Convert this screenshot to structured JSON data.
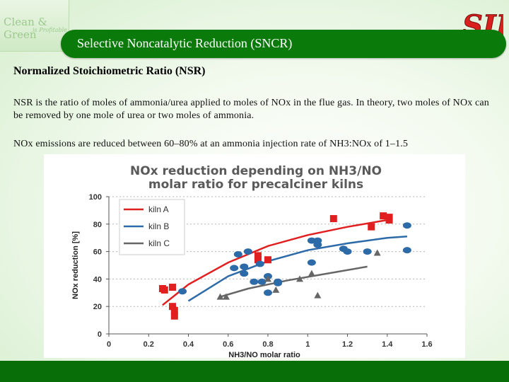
{
  "slide": {
    "logo_left_line1": "Clean & Green",
    "logo_left_line2": "is Profitable",
    "logo_right_text": "SII",
    "title": "Selective Noncatalytic Reduction (SNCR)",
    "heading": "Normalized Stoichiometric Ratio (NSR)",
    "paragraph1": "NSR is the ratio of moles of ammonia/urea applied to moles of NOx in the flue gas. In theory, two moles of NOx can be removed by one mole of urea or two moles of ammonia.",
    "paragraph2": "NOx emissions are reduced between 60–80% at an ammonia injection rate of NH3:NOx of 1–1.5",
    "colors": {
      "title_bar": "#0a7a0a",
      "footer_bar": "#086e08"
    }
  },
  "chart_data": {
    "type": "scatter",
    "title_line1": "NOx reduction depending on NH3/NO",
    "title_line2": "molar ratio for precalciner kilns",
    "xlabel": "NH3/NO molar ratio",
    "ylabel": "NOx reduction [%]",
    "xlim": [
      0,
      1.6
    ],
    "ylim": [
      0,
      100
    ],
    "x_ticks": [
      "0",
      "0.2",
      "0.4",
      "0.6",
      "0.8",
      "1",
      "1.2",
      "1.4",
      "1.6"
    ],
    "y_ticks": [
      "0",
      "20",
      "40",
      "60",
      "80",
      "100"
    ],
    "legend_position": "top-left",
    "series": [
      {
        "name": "kiln A",
        "color": "#e02020",
        "marker": "square",
        "points": [
          [
            0.27,
            33
          ],
          [
            0.28,
            32
          ],
          [
            0.32,
            34
          ],
          [
            0.32,
            20
          ],
          [
            0.33,
            17
          ],
          [
            0.33,
            13
          ],
          [
            0.75,
            57
          ],
          [
            0.75,
            54
          ],
          [
            0.8,
            54
          ],
          [
            1.13,
            84
          ],
          [
            1.32,
            78
          ],
          [
            1.38,
            86
          ],
          [
            1.41,
            85
          ],
          [
            1.41,
            83
          ]
        ],
        "trend": [
          [
            0.27,
            21
          ],
          [
            0.4,
            36
          ],
          [
            0.6,
            52
          ],
          [
            0.8,
            64
          ],
          [
            1.0,
            72
          ],
          [
            1.2,
            78
          ],
          [
            1.4,
            83
          ]
        ]
      },
      {
        "name": "kiln B",
        "color": "#2c6aa8",
        "marker": "circle",
        "points": [
          [
            0.37,
            31
          ],
          [
            0.63,
            48
          ],
          [
            0.65,
            58
          ],
          [
            0.68,
            44
          ],
          [
            0.68,
            49
          ],
          [
            0.7,
            60
          ],
          [
            0.73,
            38
          ],
          [
            0.76,
            51
          ],
          [
            0.77,
            38
          ],
          [
            0.8,
            30
          ],
          [
            0.8,
            42
          ],
          [
            0.85,
            37
          ],
          [
            0.85,
            38
          ],
          [
            1.02,
            52
          ],
          [
            1.02,
            68
          ],
          [
            1.05,
            68
          ],
          [
            1.05,
            65
          ],
          [
            1.18,
            62
          ],
          [
            1.2,
            60
          ],
          [
            1.3,
            60
          ],
          [
            1.5,
            79
          ],
          [
            1.5,
            61
          ]
        ],
        "trend": [
          [
            0.4,
            24
          ],
          [
            0.6,
            42
          ],
          [
            0.8,
            53
          ],
          [
            1.0,
            61
          ],
          [
            1.2,
            66
          ],
          [
            1.4,
            70
          ],
          [
            1.5,
            71
          ]
        ]
      },
      {
        "name": "kiln C",
        "color": "#666666",
        "marker": "triangle",
        "points": [
          [
            0.56,
            27
          ],
          [
            0.59,
            27
          ],
          [
            0.8,
            40
          ],
          [
            0.84,
            32
          ],
          [
            0.96,
            40
          ],
          [
            1.02,
            44
          ],
          [
            1.05,
            28
          ],
          [
            1.35,
            59
          ]
        ],
        "trend": [
          [
            0.56,
            27
          ],
          [
            0.7,
            33
          ],
          [
            0.9,
            39
          ],
          [
            1.1,
            44
          ],
          [
            1.3,
            49
          ]
        ]
      }
    ]
  }
}
